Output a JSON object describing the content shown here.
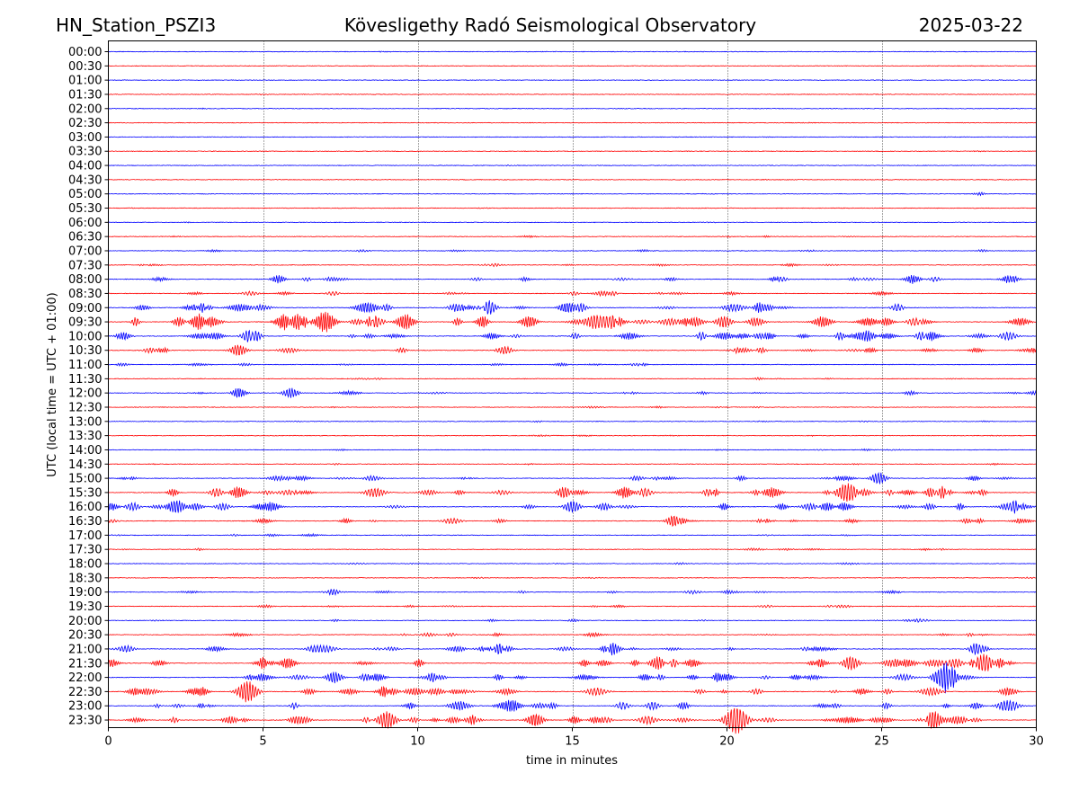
{
  "header": {
    "station": "HN_Station_PSZI3",
    "observatory": "Kövesligethy Radó Seismological Observatory",
    "date": "2025-03-22"
  },
  "chart_data": {
    "type": "line",
    "subtype": "helicorder",
    "xlabel": "time in minutes",
    "ylabel": "UTC (local time = UTC + 01:00)",
    "xlim": [
      0,
      30
    ],
    "x_ticks": [
      0,
      5,
      10,
      15,
      20,
      25,
      30
    ],
    "vertical_gridlines": [
      5,
      10,
      15,
      20,
      25
    ],
    "grid": "vertical dotted lines",
    "row_labels": [
      "00:00",
      "00:30",
      "01:00",
      "01:30",
      "02:00",
      "02:30",
      "03:00",
      "03:30",
      "04:00",
      "04:30",
      "05:00",
      "05:30",
      "06:00",
      "06:30",
      "07:00",
      "07:30",
      "08:00",
      "08:30",
      "09:00",
      "09:30",
      "10:00",
      "10:30",
      "11:00",
      "11:30",
      "12:00",
      "12:30",
      "13:00",
      "13:30",
      "14:00",
      "14:30",
      "15:00",
      "15:30",
      "16:00",
      "16:30",
      "17:00",
      "17:30",
      "18:00",
      "18:30",
      "19:00",
      "19:30",
      "20:00",
      "20:30",
      "21:00",
      "21:30",
      "22:00",
      "22:30",
      "23:00",
      "23:30"
    ],
    "trace_colors": [
      "#0000ff",
      "#ff0000"
    ],
    "relative_activity": [
      0.05,
      0.05,
      0.05,
      0.05,
      0.05,
      0.05,
      0.05,
      0.05,
      0.05,
      0.05,
      0.06,
      0.05,
      0.06,
      0.12,
      0.15,
      0.18,
      0.3,
      0.3,
      0.5,
      0.7,
      0.55,
      0.4,
      0.2,
      0.15,
      0.25,
      0.12,
      0.1,
      0.1,
      0.1,
      0.12,
      0.35,
      0.6,
      0.55,
      0.35,
      0.15,
      0.15,
      0.12,
      0.12,
      0.25,
      0.2,
      0.18,
      0.25,
      0.45,
      0.55,
      0.55,
      0.55,
      0.5,
      0.55
    ],
    "events": [
      {
        "row": "05:00",
        "minute": 28.2,
        "amplitude": 0.15
      },
      {
        "row": "08:00",
        "minute": 5.5,
        "amplitude": 0.4
      },
      {
        "row": "08:00",
        "minute": 26.0,
        "amplitude": 0.45
      },
      {
        "row": "08:00",
        "minute": 29.2,
        "amplitude": 0.4
      },
      {
        "row": "09:00",
        "minute": 12.3,
        "amplitude": 0.6
      },
      {
        "row": "09:00",
        "minute": 14.8,
        "amplitude": 0.5
      },
      {
        "row": "09:30",
        "minute": 3.0,
        "amplitude": 0.9
      },
      {
        "row": "09:30",
        "minute": 5.9,
        "amplitude": 0.9
      },
      {
        "row": "09:30",
        "minute": 7.0,
        "amplitude": 1.1
      },
      {
        "row": "09:30",
        "minute": 9.6,
        "amplitude": 0.8
      },
      {
        "row": "09:30",
        "minute": 13.6,
        "amplitude": 0.6
      },
      {
        "row": "09:30",
        "minute": 19.9,
        "amplitude": 0.6
      },
      {
        "row": "10:00",
        "minute": 4.6,
        "amplitude": 0.7
      },
      {
        "row": "10:00",
        "minute": 24.5,
        "amplitude": 0.6
      },
      {
        "row": "10:30",
        "minute": 4.2,
        "amplitude": 0.6
      },
      {
        "row": "12:00",
        "minute": 4.2,
        "amplitude": 0.5
      },
      {
        "row": "12:00",
        "minute": 5.9,
        "amplitude": 0.5
      },
      {
        "row": "15:00",
        "minute": 24.9,
        "amplitude": 0.6
      },
      {
        "row": "15:30",
        "minute": 4.2,
        "amplitude": 0.6
      },
      {
        "row": "15:30",
        "minute": 16.7,
        "amplitude": 0.6
      },
      {
        "row": "15:30",
        "minute": 23.8,
        "amplitude": 0.8
      },
      {
        "row": "15:30",
        "minute": 26.9,
        "amplitude": 0.6
      },
      {
        "row": "16:00",
        "minute": 2.2,
        "amplitude": 0.6
      },
      {
        "row": "16:00",
        "minute": 15.0,
        "amplitude": 0.6
      },
      {
        "row": "16:30",
        "minute": 18.3,
        "amplitude": 0.6
      },
      {
        "row": "21:00",
        "minute": 16.3,
        "amplitude": 0.6
      },
      {
        "row": "21:00",
        "minute": 28.1,
        "amplitude": 0.6
      },
      {
        "row": "21:30",
        "minute": 5.8,
        "amplitude": 0.6
      },
      {
        "row": "21:30",
        "minute": 17.8,
        "amplitude": 0.7
      },
      {
        "row": "21:30",
        "minute": 24.0,
        "amplitude": 0.7
      },
      {
        "row": "21:30",
        "minute": 28.3,
        "amplitude": 0.9
      },
      {
        "row": "22:00",
        "minute": 7.3,
        "amplitude": 0.6
      },
      {
        "row": "22:00",
        "minute": 27.1,
        "amplitude": 1.3
      },
      {
        "row": "22:30",
        "minute": 4.5,
        "amplitude": 1.1
      },
      {
        "row": "23:00",
        "minute": 29.0,
        "amplitude": 0.6
      },
      {
        "row": "23:30",
        "minute": 9.0,
        "amplitude": 0.9
      },
      {
        "row": "23:30",
        "minute": 13.8,
        "amplitude": 0.7
      },
      {
        "row": "23:30",
        "minute": 20.3,
        "amplitude": 1.4
      },
      {
        "row": "23:30",
        "minute": 26.7,
        "amplitude": 0.8
      }
    ]
  }
}
